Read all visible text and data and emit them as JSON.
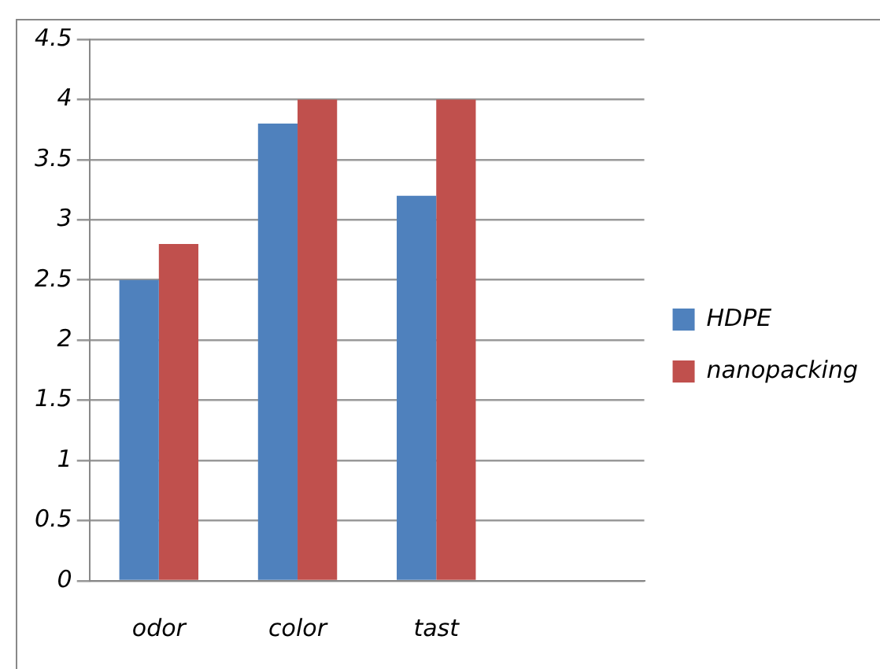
{
  "chart_data": {
    "type": "bar",
    "categories": [
      "odor",
      "color",
      "tast",
      null
    ],
    "series": [
      {
        "name": "HDPE",
        "color": "#4f81bd",
        "values": [
          2.5,
          3.8,
          3.2,
          null
        ]
      },
      {
        "name": "nanopacking",
        "color": "#c0504d",
        "values": [
          2.8,
          4.0,
          4.0,
          null
        ]
      }
    ],
    "ylim": [
      0,
      4.5
    ],
    "yticks": [
      0,
      0.5,
      1,
      1.5,
      2,
      2.5,
      3,
      3.5,
      4,
      4.5
    ],
    "grid": "y",
    "legend": "right"
  }
}
